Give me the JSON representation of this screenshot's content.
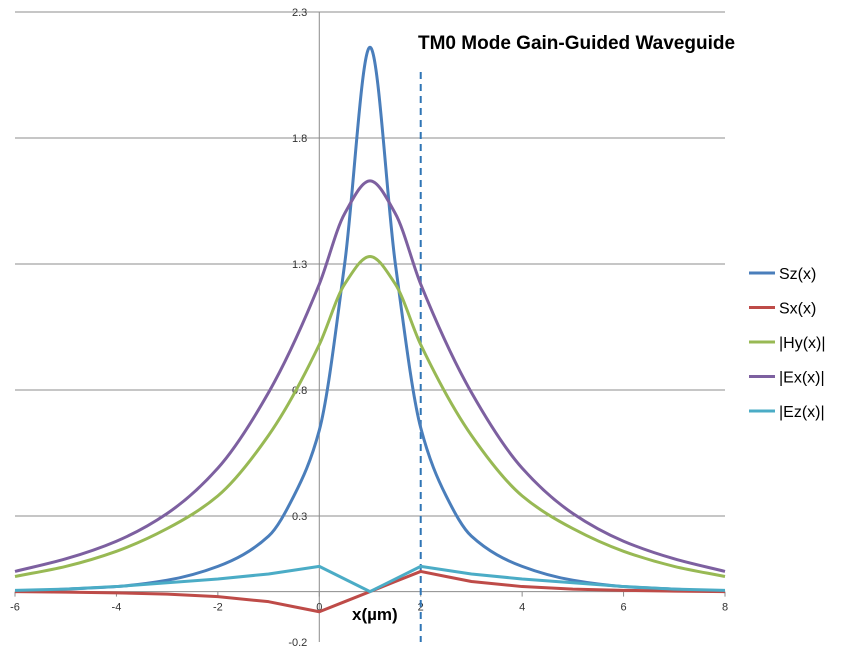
{
  "chart_data": {
    "type": "line",
    "title": "TM0 Mode  Gain-Guided Waveguide",
    "xlabel": "x(µm)",
    "ylabel": "",
    "xlim": [
      -6,
      8
    ],
    "ylim": [
      -0.2,
      2.3
    ],
    "x_ticks": [
      "-6",
      "-4",
      "-2",
      "0",
      "2",
      "4",
      "6",
      "8"
    ],
    "y_ticks": [
      "-0.2",
      "0.3",
      "0.8",
      "1.3",
      "1.8",
      "2.3"
    ],
    "grid": "horizontal",
    "legend": "right",
    "vertical_marker": {
      "x": 2,
      "style": "dashed",
      "color": "#2f75b5"
    },
    "series": [
      {
        "name": "Sz(x)",
        "color": "#4a7ebb",
        "x": [
          -6,
          -5,
          -4,
          -3,
          -2,
          -1,
          -0.5,
          0,
          0.5,
          1,
          1.5,
          2,
          2.5,
          3,
          4,
          5,
          6,
          7,
          8
        ],
        "values": [
          0.0,
          0.01,
          0.02,
          0.045,
          0.1,
          0.22,
          0.38,
          0.64,
          1.3,
          2.16,
          1.3,
          0.65,
          0.38,
          0.22,
          0.1,
          0.045,
          0.02,
          0.01,
          0.0
        ]
      },
      {
        "name": "Sx(x)",
        "color": "#be4b48",
        "x": [
          -6,
          -5,
          -4,
          -3,
          -2,
          -1,
          -0.5,
          0,
          0.5,
          1,
          1.5,
          2,
          2.5,
          3,
          4,
          5,
          6,
          7,
          8
        ],
        "values": [
          0.0,
          -0.002,
          -0.005,
          -0.01,
          -0.02,
          -0.04,
          -0.06,
          -0.08,
          -0.04,
          0.0,
          0.04,
          0.08,
          0.06,
          0.04,
          0.02,
          0.01,
          0.005,
          0.002,
          0.0
        ]
      },
      {
        "name": "|Hy(x)|",
        "color": "#98b954",
        "x": [
          -6,
          -5,
          -4,
          -3,
          -2,
          -1,
          0,
          0.5,
          1,
          1.5,
          2,
          3,
          4,
          5,
          6,
          7,
          8
        ],
        "values": [
          0.06,
          0.1,
          0.16,
          0.25,
          0.38,
          0.62,
          0.98,
          1.22,
          1.33,
          1.22,
          0.98,
          0.62,
          0.38,
          0.25,
          0.16,
          0.1,
          0.06
        ]
      },
      {
        "name": "|Ex(x)|",
        "color": "#7d60a0",
        "x": [
          -6,
          -5,
          -4,
          -3,
          -2,
          -1,
          0,
          0.5,
          1,
          1.5,
          2,
          3,
          4,
          5,
          6,
          7,
          8
        ],
        "values": [
          0.08,
          0.13,
          0.2,
          0.31,
          0.49,
          0.79,
          1.22,
          1.5,
          1.63,
          1.5,
          1.22,
          0.79,
          0.49,
          0.31,
          0.2,
          0.13,
          0.08
        ]
      },
      {
        "name": "|Ez(x)|",
        "color": "#4bacc6",
        "x": [
          -6,
          -5,
          -4,
          -3,
          -2,
          -1,
          0,
          1,
          2,
          3,
          4,
          5,
          6,
          7,
          8
        ],
        "values": [
          0.005,
          0.01,
          0.02,
          0.035,
          0.05,
          0.07,
          0.1,
          0.0,
          0.1,
          0.07,
          0.05,
          0.035,
          0.02,
          0.01,
          0.005
        ]
      }
    ]
  }
}
